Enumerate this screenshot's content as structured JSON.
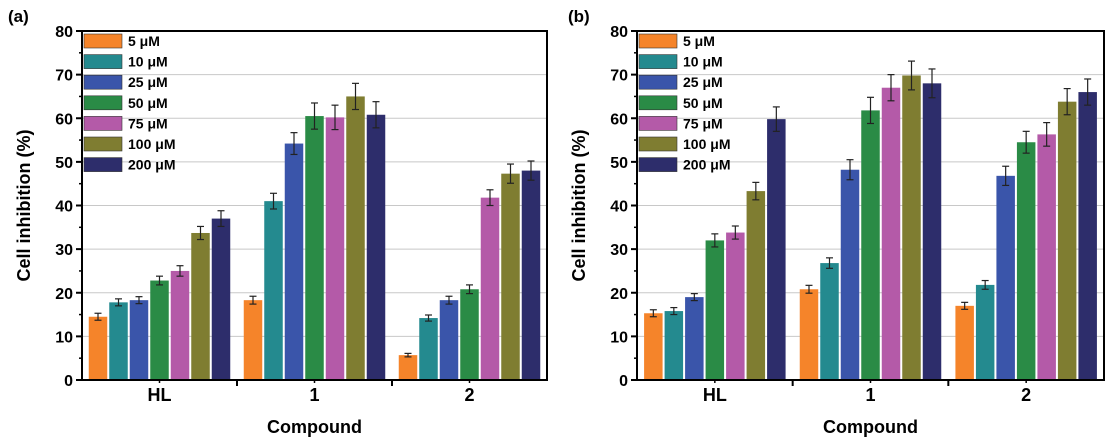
{
  "chart_data": [
    {
      "type": "bar",
      "panel_label": "(a)",
      "xlabel": "Compound",
      "ylabel": "Cell inhibition (%)",
      "ylim": [
        0,
        80
      ],
      "yticks": [
        "0",
        "10",
        "20",
        "30",
        "40",
        "50",
        "60",
        "70",
        "80"
      ],
      "categories": [
        "HL",
        "1",
        "2"
      ],
      "grid": "horizontal",
      "legend_position": "top-left",
      "series": [
        {
          "name": "5 μM",
          "color": "#f5842a",
          "values": [
            14.5,
            18.3,
            5.7
          ],
          "errors": [
            0.8,
            0.9,
            0.4
          ]
        },
        {
          "name": "10 μM",
          "color": "#248a8f",
          "values": [
            17.8,
            41.0,
            14.2
          ],
          "errors": [
            0.8,
            1.8,
            0.7
          ]
        },
        {
          "name": "25 μM",
          "color": "#3a55aa",
          "values": [
            18.3,
            54.2,
            18.3
          ],
          "errors": [
            0.8,
            2.5,
            0.9
          ]
        },
        {
          "name": "50 μM",
          "color": "#2a8b46",
          "values": [
            22.8,
            60.5,
            20.8
          ],
          "errors": [
            1.0,
            3.0,
            1.0
          ]
        },
        {
          "name": "75 μM",
          "color": "#b45aa8",
          "values": [
            25.0,
            60.2,
            41.8
          ],
          "errors": [
            1.2,
            2.8,
            1.8
          ]
        },
        {
          "name": "100 μM",
          "color": "#7f7d31",
          "values": [
            33.7,
            65.0,
            47.3
          ],
          "errors": [
            1.5,
            3.0,
            2.2
          ]
        },
        {
          "name": "200 μM",
          "color": "#2d2d6b",
          "values": [
            37.0,
            60.8,
            48.0
          ],
          "errors": [
            1.8,
            3.0,
            2.2
          ]
        }
      ]
    },
    {
      "type": "bar",
      "panel_label": "(b)",
      "xlabel": "Compound",
      "ylabel": "Cell inhibition (%)",
      "ylim": [
        0,
        80
      ],
      "yticks": [
        "0",
        "10",
        "20",
        "30",
        "40",
        "50",
        "60",
        "70",
        "80"
      ],
      "categories": [
        "HL",
        "1",
        "2"
      ],
      "grid": "horizontal",
      "legend_position": "top-left",
      "series": [
        {
          "name": "5 μM",
          "color": "#f5842a",
          "values": [
            15.3,
            20.8,
            17.0
          ],
          "errors": [
            0.8,
            0.9,
            0.8
          ]
        },
        {
          "name": "10 μM",
          "color": "#248a8f",
          "values": [
            15.8,
            26.8,
            21.8
          ],
          "errors": [
            0.8,
            1.2,
            1.0
          ]
        },
        {
          "name": "25 μM",
          "color": "#3a55aa",
          "values": [
            19.0,
            48.2,
            46.8
          ],
          "errors": [
            0.8,
            2.3,
            2.2
          ]
        },
        {
          "name": "50 μM",
          "color": "#2a8b46",
          "values": [
            32.0,
            61.8,
            54.5
          ],
          "errors": [
            1.5,
            3.0,
            2.5
          ]
        },
        {
          "name": "75 μM",
          "color": "#b45aa8",
          "values": [
            33.8,
            67.0,
            56.3
          ],
          "errors": [
            1.5,
            3.0,
            2.7
          ]
        },
        {
          "name": "100 μM",
          "color": "#7f7d31",
          "values": [
            43.3,
            69.8,
            63.8
          ],
          "errors": [
            2.0,
            3.3,
            3.0
          ]
        },
        {
          "name": "200 μM",
          "color": "#2d2d6b",
          "values": [
            59.8,
            68.0,
            66.0
          ],
          "errors": [
            2.8,
            3.3,
            3.0
          ]
        }
      ]
    }
  ]
}
